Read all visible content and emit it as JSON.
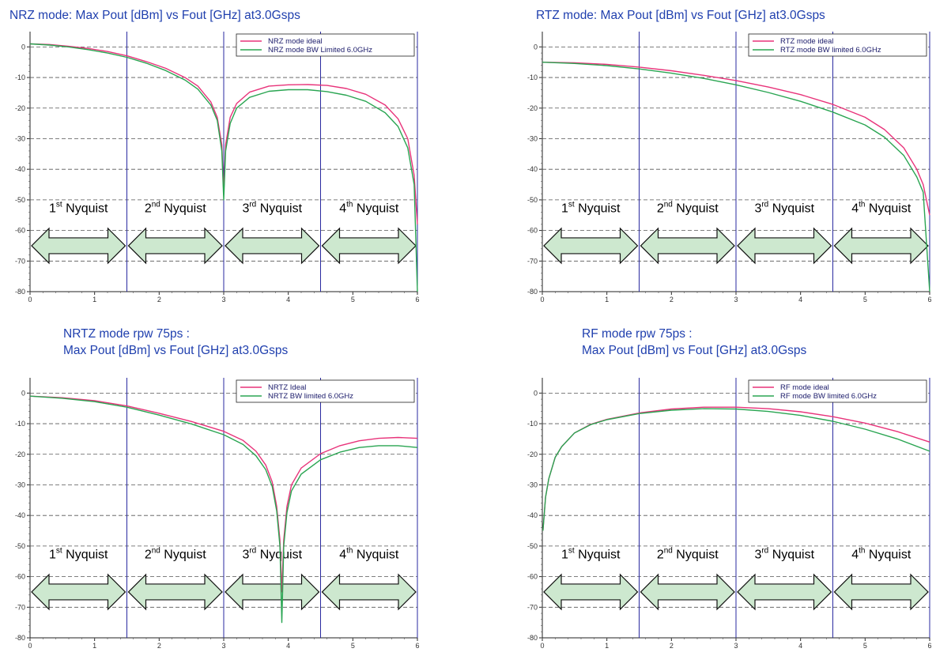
{
  "colors": {
    "ideal": "#e8337a",
    "bw_limited": "#2aa552",
    "title": "#1f3fae",
    "nyquist_line": "#2a2aa0",
    "arrow_fill": "#cde8cf"
  },
  "nyquist": {
    "zones": [
      {
        "num": "1",
        "sup": "st",
        "word": "Nyquist"
      },
      {
        "num": "2",
        "sup": "nd",
        "word": "Nyquist"
      },
      {
        "num": "3",
        "sup": "rd",
        "word": "Nyquist"
      },
      {
        "num": "4",
        "sup": "th",
        "word": "Nyquist"
      }
    ]
  },
  "chart_data": [
    {
      "type": "line",
      "title": "NRZ mode: Max Pout [dBm] vs Fout [GHz] at3.0Gsps",
      "xlim": [
        0,
        6
      ],
      "ylim": [
        -80,
        5
      ],
      "x_ticks": [
        "0",
        "1",
        "2",
        "3",
        "4",
        "5",
        "6"
      ],
      "y_ticks": [
        "0",
        "-10",
        "-20",
        "-30",
        "-40",
        "-50",
        "-60",
        "-70",
        "-80"
      ],
      "grid": "horizontal dashed",
      "nyquist_boundaries": [
        1.5,
        3,
        4.5,
        6
      ],
      "legend_position": "top-right",
      "legend": [
        "NRZ mode ideal",
        "NRZ mode BW Limited 6.0GHz"
      ],
      "series": [
        {
          "name": "NRZ mode ideal",
          "color": "ideal",
          "x": [
            0,
            0.3,
            0.6,
            0.9,
            1.2,
            1.5,
            1.8,
            2.1,
            2.4,
            2.6,
            2.8,
            2.9,
            2.97,
            3.0,
            3.03,
            3.1,
            3.2,
            3.4,
            3.7,
            4.0,
            4.3,
            4.6,
            4.9,
            5.2,
            5.5,
            5.7,
            5.85,
            5.95,
            6.0
          ],
          "y": [
            1,
            0.8,
            0.2,
            -0.5,
            -1.5,
            -2.9,
            -4.8,
            -7.0,
            -10.0,
            -12.8,
            -18,
            -23,
            -32,
            -48,
            -32,
            -23,
            -18.5,
            -14.8,
            -12.8,
            -12.4,
            -12.3,
            -12.6,
            -13.6,
            -15.5,
            -19,
            -23.5,
            -30,
            -42,
            -58
          ]
        },
        {
          "name": "NRZ mode BW Limited 6.0GHz",
          "color": "bw_limited",
          "x": [
            0,
            0.3,
            0.6,
            0.9,
            1.2,
            1.5,
            1.8,
            2.1,
            2.4,
            2.6,
            2.8,
            2.9,
            2.97,
            3.0,
            3.03,
            3.1,
            3.2,
            3.4,
            3.7,
            4.0,
            4.3,
            4.6,
            4.9,
            5.2,
            5.5,
            5.7,
            5.85,
            5.95,
            6.0
          ],
          "y": [
            1,
            0.6,
            0.0,
            -0.9,
            -2.0,
            -3.4,
            -5.3,
            -7.7,
            -10.8,
            -13.8,
            -19,
            -24,
            -34,
            -50,
            -34,
            -25,
            -20,
            -16.5,
            -14.5,
            -14.0,
            -14.0,
            -14.6,
            -15.8,
            -17.8,
            -21.5,
            -26,
            -33,
            -45,
            -80
          ]
        }
      ]
    },
    {
      "type": "line",
      "title": "RTZ mode: Max Pout [dBm] vs Fout [GHz] at3.0Gsps",
      "xlim": [
        0,
        6
      ],
      "ylim": [
        -80,
        5
      ],
      "x_ticks": [
        "0",
        "1",
        "2",
        "3",
        "4",
        "5",
        "6"
      ],
      "y_ticks": [
        "0",
        "-10",
        "-20",
        "-30",
        "-40",
        "-50",
        "-60",
        "-70",
        "-80"
      ],
      "grid": "horizontal dashed",
      "nyquist_boundaries": [
        1.5,
        3,
        4.5,
        6
      ],
      "legend_position": "top-right",
      "legend": [
        "RTZ mode ideal",
        "RTZ mode BW limited 6.0GHz"
      ],
      "series": [
        {
          "name": "RTZ mode ideal",
          "color": "ideal",
          "x": [
            0,
            0.5,
            1.0,
            1.5,
            2.0,
            2.5,
            3.0,
            3.5,
            4.0,
            4.5,
            5.0,
            5.3,
            5.6,
            5.8,
            5.9,
            6.0
          ],
          "y": [
            -5,
            -5.2,
            -5.7,
            -6.6,
            -7.8,
            -9.3,
            -11.0,
            -13.1,
            -15.6,
            -18.8,
            -23.0,
            -27,
            -33,
            -40,
            -45,
            -55
          ]
        },
        {
          "name": "RTZ mode BW limited 6.0GHz",
          "color": "bw_limited",
          "x": [
            0,
            0.5,
            1.0,
            1.5,
            2.0,
            2.5,
            3.0,
            3.5,
            4.0,
            4.5,
            5.0,
            5.3,
            5.6,
            5.8,
            5.9,
            6.0
          ],
          "y": [
            -5,
            -5.4,
            -6.1,
            -7.2,
            -8.6,
            -10.3,
            -12.4,
            -14.9,
            -17.8,
            -21.3,
            -25.5,
            -29.5,
            -35.5,
            -42.5,
            -47.5,
            -80
          ]
        }
      ]
    },
    {
      "type": "line",
      "title": "NRTZ mode rpw 75ps :\nMax Pout [dBm] vs Fout [GHz] at3.0Gsps",
      "xlim": [
        0,
        6
      ],
      "ylim": [
        -80,
        5
      ],
      "x_ticks": [
        "0",
        "1",
        "2",
        "3",
        "4",
        "5",
        "6"
      ],
      "y_ticks": [
        "0",
        "-10",
        "-20",
        "-30",
        "-40",
        "-50",
        "-60",
        "-70",
        "-80"
      ],
      "grid": "horizontal dashed",
      "nyquist_boundaries": [
        1.5,
        3,
        4.5,
        6
      ],
      "legend_position": "top-right",
      "legend": [
        "NRTZ Ideal",
        "NRTZ BW limited 6.0GHz"
      ],
      "series": [
        {
          "name": "NRTZ Ideal",
          "color": "ideal",
          "x": [
            0,
            0.5,
            1.0,
            1.5,
            2.0,
            2.5,
            3.0,
            3.3,
            3.5,
            3.65,
            3.75,
            3.82,
            3.87,
            3.9,
            3.93,
            3.98,
            4.05,
            4.2,
            4.5,
            4.8,
            5.1,
            5.4,
            5.7,
            6.0
          ],
          "y": [
            -1,
            -1.5,
            -2.5,
            -4.2,
            -6.6,
            -9.3,
            -12.5,
            -15.5,
            -19,
            -23.5,
            -29,
            -37,
            -48,
            -65,
            -48,
            -37,
            -30,
            -24.5,
            -19.8,
            -17.2,
            -15.6,
            -14.8,
            -14.5,
            -14.8
          ]
        },
        {
          "name": "NRTZ BW limited 6.0GHz",
          "color": "bw_limited",
          "x": [
            0,
            0.5,
            1.0,
            1.5,
            2.0,
            2.5,
            3.0,
            3.3,
            3.5,
            3.65,
            3.75,
            3.82,
            3.87,
            3.9,
            3.93,
            3.98,
            4.05,
            4.2,
            4.5,
            4.8,
            5.1,
            5.4,
            5.7,
            6.0
          ],
          "y": [
            -1,
            -1.7,
            -2.8,
            -4.6,
            -7.2,
            -10.1,
            -13.6,
            -16.8,
            -20.5,
            -25,
            -30.5,
            -38.5,
            -50,
            -75,
            -50,
            -39,
            -32,
            -26.5,
            -21.8,
            -19.3,
            -17.8,
            -17.2,
            -17.2,
            -17.8
          ]
        }
      ]
    },
    {
      "type": "line",
      "title": "RF mode rpw 75ps :\nMax Pout [dBm] vs Fout [GHz] at3.0Gsps",
      "xlim": [
        0,
        6
      ],
      "ylim": [
        -80,
        5
      ],
      "x_ticks": [
        "0",
        "1",
        "2",
        "3",
        "4",
        "5",
        "6"
      ],
      "y_ticks": [
        "0",
        "-10",
        "-20",
        "-30",
        "-40",
        "-50",
        "-60",
        "-70",
        "-80"
      ],
      "grid": "horizontal dashed",
      "nyquist_boundaries": [
        1.5,
        3,
        4.5,
        6
      ],
      "legend_position": "top-right",
      "legend": [
        "RF mode ideal",
        "RF mode BW limited 6.0GHz"
      ],
      "series": [
        {
          "name": "RF mode ideal",
          "color": "ideal",
          "x": [
            0.01,
            0.05,
            0.1,
            0.2,
            0.3,
            0.5,
            0.75,
            1.0,
            1.5,
            2.0,
            2.5,
            3.0,
            3.5,
            4.0,
            4.5,
            5.0,
            5.5,
            6.0
          ],
          "y": [
            -45,
            -34,
            -28,
            -21,
            -17.5,
            -13,
            -10.2,
            -8.6,
            -6.5,
            -5.2,
            -4.6,
            -4.6,
            -5.1,
            -6.1,
            -7.7,
            -9.8,
            -12.6,
            -16.0
          ]
        },
        {
          "name": "RF mode BW limited 6.0GHz",
          "color": "bw_limited",
          "x": [
            0.01,
            0.05,
            0.1,
            0.2,
            0.3,
            0.5,
            0.75,
            1.0,
            1.5,
            2.0,
            2.5,
            3.0,
            3.5,
            4.0,
            4.5,
            5.0,
            5.5,
            6.0
          ],
          "y": [
            -45,
            -34,
            -28,
            -21,
            -17.5,
            -13,
            -10.3,
            -8.7,
            -6.7,
            -5.6,
            -5.1,
            -5.2,
            -6.0,
            -7.3,
            -9.2,
            -11.8,
            -15.0,
            -19.0
          ]
        }
      ]
    }
  ]
}
